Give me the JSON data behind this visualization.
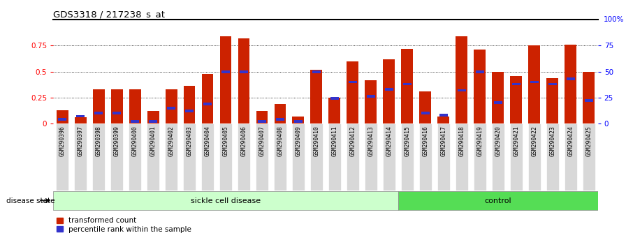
{
  "title": "GDS3318 / 217238_s_at",
  "samples": [
    "GSM290396",
    "GSM290397",
    "GSM290398",
    "GSM290399",
    "GSM290400",
    "GSM290401",
    "GSM290402",
    "GSM290403",
    "GSM290404",
    "GSM290405",
    "GSM290406",
    "GSM290407",
    "GSM290408",
    "GSM290409",
    "GSM290410",
    "GSM290411",
    "GSM290412",
    "GSM290413",
    "GSM290414",
    "GSM290415",
    "GSM290416",
    "GSM290417",
    "GSM290418",
    "GSM290419",
    "GSM290420",
    "GSM290421",
    "GSM290422",
    "GSM290423",
    "GSM290424",
    "GSM290425"
  ],
  "transformed_count": [
    0.13,
    0.06,
    0.33,
    0.33,
    0.33,
    0.12,
    0.33,
    0.36,
    0.48,
    0.84,
    0.82,
    0.12,
    0.19,
    0.07,
    0.52,
    0.25,
    0.6,
    0.42,
    0.62,
    0.72,
    0.31,
    0.07,
    0.84,
    0.71,
    0.5,
    0.46,
    0.75,
    0.44,
    0.76,
    0.5
  ],
  "percentile_rank": [
    0.04,
    0.07,
    0.1,
    0.1,
    0.02,
    0.02,
    0.15,
    0.12,
    0.19,
    0.5,
    0.5,
    0.02,
    0.04,
    0.02,
    0.5,
    0.24,
    0.4,
    0.26,
    0.33,
    0.38,
    0.1,
    0.08,
    0.32,
    0.5,
    0.2,
    0.38,
    0.4,
    0.38,
    0.43,
    0.22
  ],
  "sickle_cell_count": 19,
  "control_count": 11,
  "bar_color": "#cc2200",
  "percentile_color": "#3333cc",
  "sickle_bg": "#ccffcc",
  "control_bg": "#55dd55",
  "xtick_bg": "#d8d8d8",
  "ylim": [
    0,
    1.0
  ],
  "yticks": [
    0,
    0.25,
    0.5,
    0.75
  ],
  "ytick_labels_left": [
    "0",
    "0.25",
    "0.5",
    "0.75"
  ],
  "ytick_labels_right": [
    "0",
    "25",
    "50",
    "75"
  ],
  "right_top_label": "100%"
}
